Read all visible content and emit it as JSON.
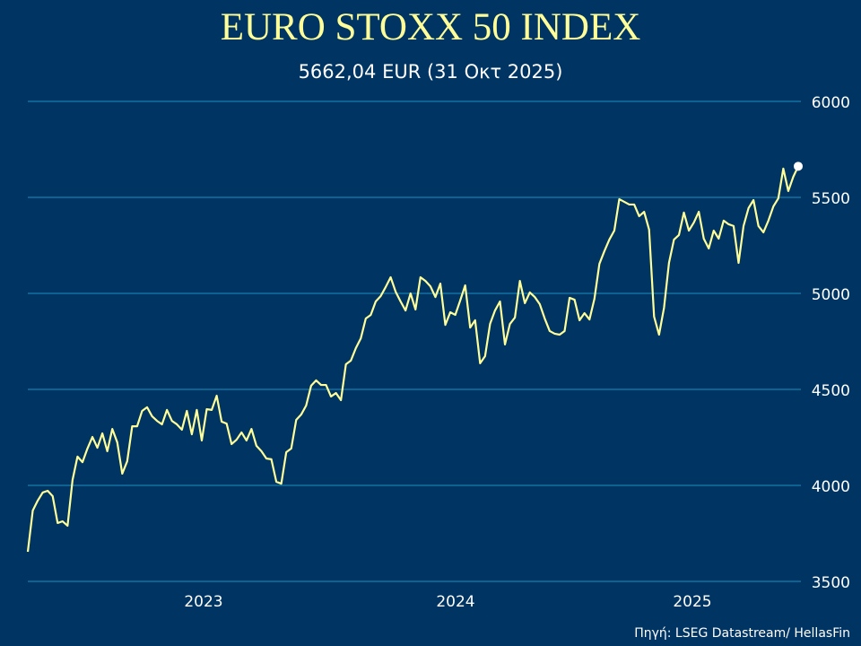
{
  "chart_data": {
    "type": "line",
    "title": "EURO STOXX 50 INDEX",
    "subtitle": "5662,04 EUR (31 Οκτ 2025)",
    "source": "Πηγή: LSEG Datastream/ HellasFin",
    "x_tick_labels": [
      "2023",
      "2024",
      "2025"
    ],
    "y_ticks": [
      3500,
      4000,
      4500,
      5000,
      5500,
      6000
    ],
    "ylim": [
      3500,
      6000
    ],
    "grid": true,
    "line_color": "#ffff99",
    "grid_color": "#1a8fc0",
    "background": "#003462",
    "last_value": 5662.04,
    "values": [
      3654,
      3869,
      3921,
      3963,
      3972,
      3944,
      3804,
      3813,
      3790,
      4028,
      4150,
      4121,
      4192,
      4252,
      4196,
      4271,
      4178,
      4294,
      4224,
      4061,
      4126,
      4308,
      4308,
      4388,
      4407,
      4360,
      4336,
      4318,
      4393,
      4336,
      4318,
      4290,
      4388,
      4266,
      4393,
      4234,
      4397,
      4393,
      4467,
      4332,
      4322,
      4215,
      4238,
      4276,
      4234,
      4294,
      4206,
      4178,
      4140,
      4136,
      4019,
      4009,
      4173,
      4192,
      4341,
      4369,
      4416,
      4519,
      4547,
      4523,
      4523,
      4463,
      4481,
      4444,
      4631,
      4650,
      4715,
      4766,
      4869,
      4888,
      4958,
      4986,
      5033,
      5084,
      5009,
      4958,
      4911,
      5000,
      4916,
      5084,
      5065,
      5037,
      4981,
      5051,
      4836,
      4902,
      4888,
      4963,
      5042,
      4822,
      4860,
      4636,
      4673,
      4841,
      4911,
      4958,
      4734,
      4841,
      4874,
      5065,
      4949,
      5005,
      4981,
      4944,
      4869,
      4804,
      4790,
      4785,
      4804,
      4977,
      4967,
      4860,
      4897,
      4864,
      4972,
      5154,
      5220,
      5280,
      5327,
      5491,
      5477,
      5463,
      5463,
      5402,
      5425,
      5332,
      4879,
      4785,
      4925,
      5159,
      5280,
      5304,
      5421,
      5327,
      5369,
      5425,
      5285,
      5234,
      5327,
      5285,
      5379,
      5360,
      5351,
      5159,
      5351,
      5444,
      5486,
      5351,
      5318,
      5379,
      5453,
      5495,
      5650,
      5533,
      5607,
      5662.04
    ]
  }
}
